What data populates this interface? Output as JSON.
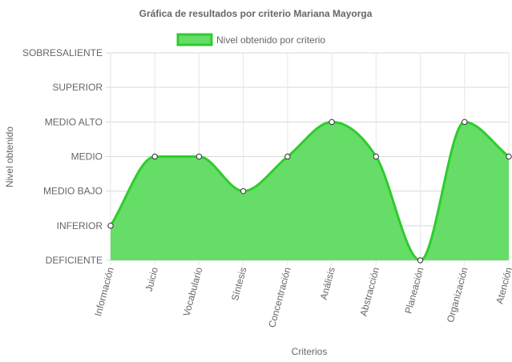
{
  "chart_data": {
    "type": "area",
    "title": "Gráfica de resultados por criterio Mariana Mayorga",
    "xlabel": "Criterios",
    "ylabel": "Nivel obtenido",
    "legend": {
      "position": "top",
      "entries": [
        "Nivel obtenido por criterio"
      ]
    },
    "y_levels": [
      "DEFICIENTE",
      "INFERIOR",
      "MEDIO BAJO",
      "MEDIO",
      "MEDIO ALTO",
      "SUPERIOR",
      "SOBRESALIENTE"
    ],
    "ylim": [
      0,
      6
    ],
    "categories": [
      "Información",
      "Juicio",
      "Vocabulario",
      "Síntesis",
      "Concentración",
      "Análisis",
      "Abstracción",
      "Planeación",
      "Organización",
      "Atención"
    ],
    "series": [
      {
        "name": "Nivel obtenido por criterio",
        "values": [
          1,
          3,
          3,
          2,
          3,
          4,
          3,
          0,
          4,
          3
        ],
        "color": "#2ecc2e",
        "fill": "#66dd66"
      }
    ],
    "grid": true
  }
}
